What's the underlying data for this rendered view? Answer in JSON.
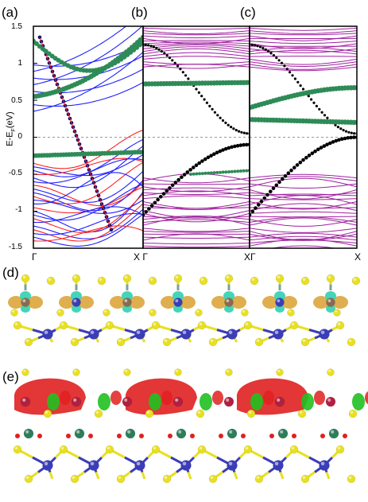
{
  "figure": {
    "panels": [
      {
        "label": "(a)"
      },
      {
        "label": "(b)"
      },
      {
        "label": "(c)"
      },
      {
        "label": "(d)"
      },
      {
        "label": "(e)"
      }
    ],
    "y_axis_title": "E-E",
    "y_axis_title_sub": "F",
    "y_axis_title_unit": "(eV)",
    "y_ticks": [
      "1.5",
      "1",
      "0.5",
      "0",
      "-0.5",
      "-1",
      "-1.5"
    ],
    "x_ticks": [
      "Γ",
      "X Γ",
      "XΓ",
      "X"
    ]
  },
  "chart_data": [
    {
      "type": "line",
      "panel": "(a)",
      "ylim": [
        -1.5,
        1.5
      ],
      "x_ticks": [
        "Γ",
        "X"
      ],
      "fermi_level": 0,
      "series_colors": [
        "#1f1fff",
        "#ff2020",
        "#000000",
        "#2e8b57"
      ]
    },
    {
      "type": "line",
      "panel": "(b)",
      "ylim": [
        -1.5,
        1.5
      ],
      "x_ticks": [
        "Γ",
        "X"
      ],
      "fermi_level": 0,
      "series_colors": [
        "#a0209f",
        "#000000",
        "#2e8b57"
      ]
    },
    {
      "type": "line",
      "panel": "(c)",
      "ylim": [
        -1.5,
        1.5
      ],
      "x_ticks": [
        "Γ",
        "X"
      ],
      "fermi_level": 0,
      "series_colors": [
        "#a0209f",
        "#000000",
        "#2e8b57"
      ]
    }
  ],
  "colors": {
    "sulfur": "#e8e020",
    "metal": "#3b3db8",
    "charge_red": "#e02020",
    "charge_green": "#20c020",
    "charge_orange": "#d9a030",
    "charge_cyan": "#30d0b0"
  }
}
